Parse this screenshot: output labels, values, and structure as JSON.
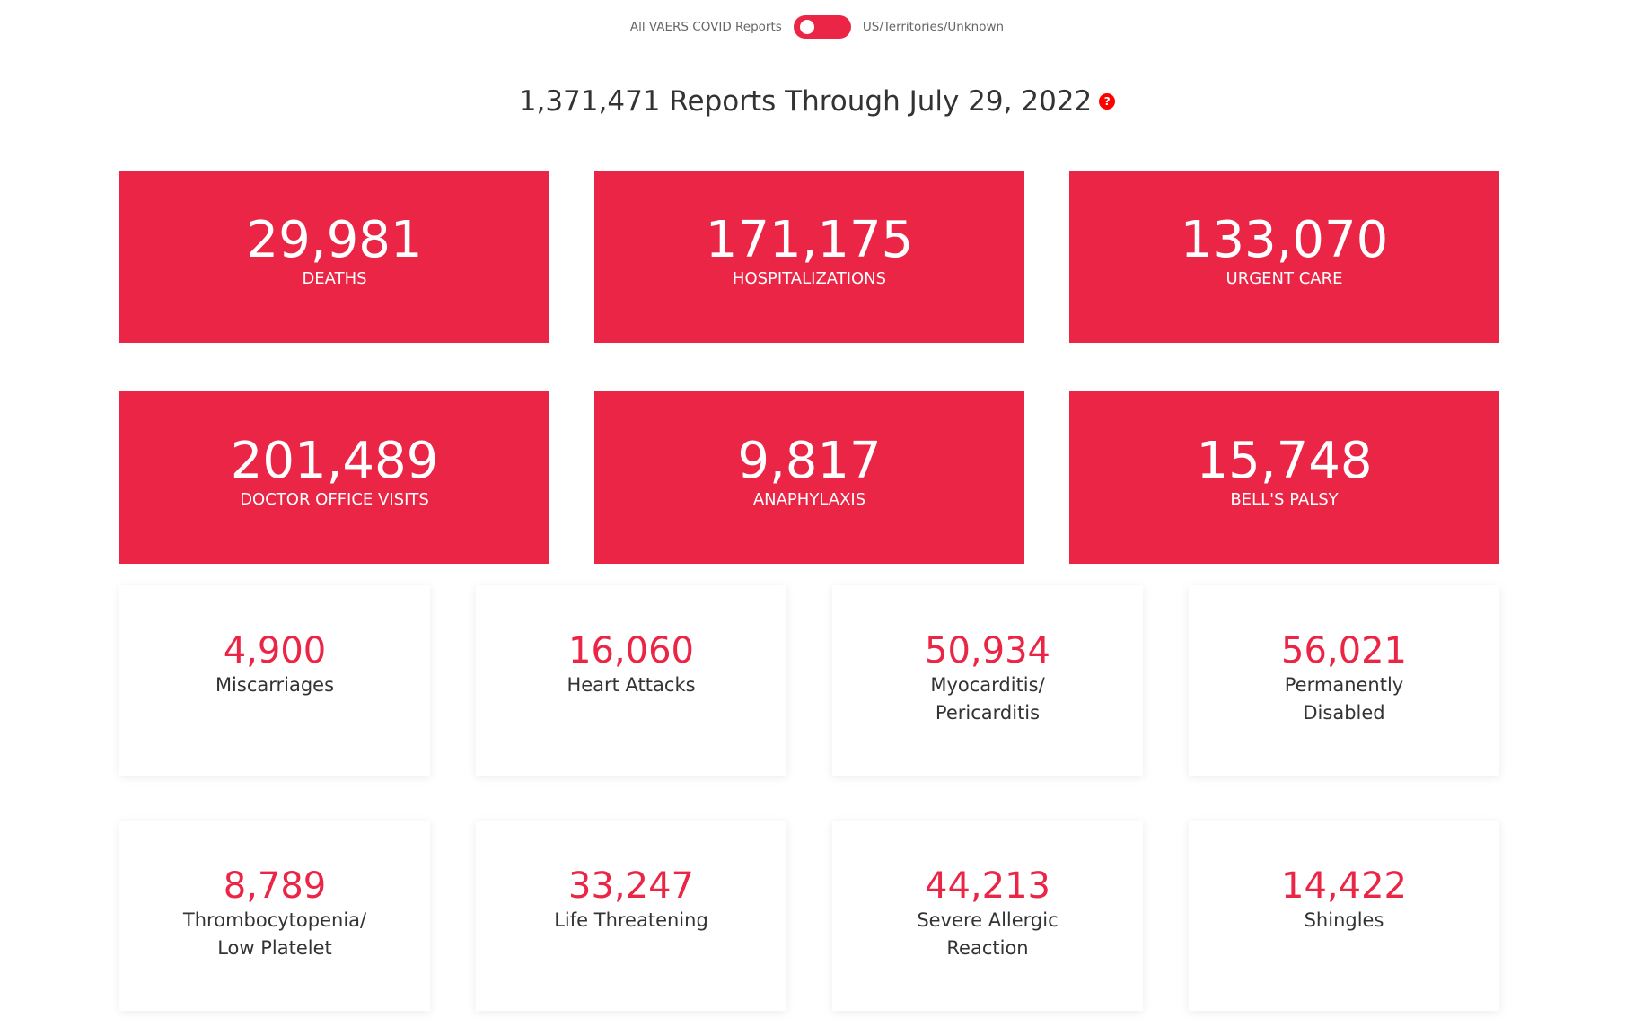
{
  "toggle": {
    "left_label": "All VAERS COVID Reports",
    "right_label": "US/Territories/Unknown",
    "state": "left",
    "color": "#eb2545"
  },
  "header": {
    "title": "1,371,471 Reports Through July 29, 2022",
    "help_icon": "?"
  },
  "accent_color": "#eb2545",
  "primary_stats": [
    {
      "value": "29,981",
      "label": "DEATHS"
    },
    {
      "value": "171,175",
      "label": "HOSPITALIZATIONS"
    },
    {
      "value": "133,070",
      "label": "URGENT CARE"
    },
    {
      "value": "201,489",
      "label": "DOCTOR OFFICE VISITS"
    },
    {
      "value": "9,817",
      "label": "ANAPHYLAXIS"
    },
    {
      "value": "15,748",
      "label": "BELL'S PALSY"
    }
  ],
  "secondary_stats": [
    {
      "value": "4,900",
      "label": "Miscarriages"
    },
    {
      "value": "16,060",
      "label": "Heart Attacks"
    },
    {
      "value": "50,934",
      "label": "Myocarditis/\nPericarditis"
    },
    {
      "value": "56,021",
      "label": "Permanently\nDisabled"
    },
    {
      "value": "8,789",
      "label": "Thrombocytopenia/\nLow Platelet"
    },
    {
      "value": "33,247",
      "label": "Life Threatening"
    },
    {
      "value": "44,213",
      "label": "Severe Allergic\nReaction"
    },
    {
      "value": "14,422",
      "label": "Shingles"
    }
  ]
}
